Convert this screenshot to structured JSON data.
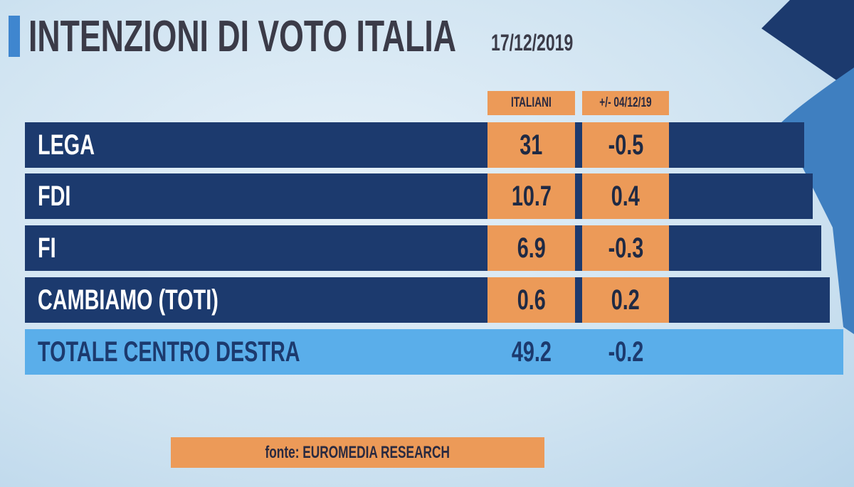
{
  "header": {
    "title": "INTENZIONI DI VOTO ITALIA",
    "date": "17/12/2019"
  },
  "table": {
    "columns": [
      "ITALIANI",
      "+/- 04/12/19"
    ],
    "rows": [
      [
        "LEGA",
        "31",
        "-0.5"
      ],
      [
        "FDI",
        "10.7",
        "0.4"
      ],
      [
        "FI",
        "6.9",
        "-0.3"
      ],
      [
        "CAMBIAMO (TOTI)",
        "0.6",
        "0.2"
      ]
    ],
    "total": [
      "TOTALE CENTRO DESTRA",
      "49.2",
      "-0.2"
    ]
  },
  "source": "fonte: EUROMEDIA RESEARCH"
}
